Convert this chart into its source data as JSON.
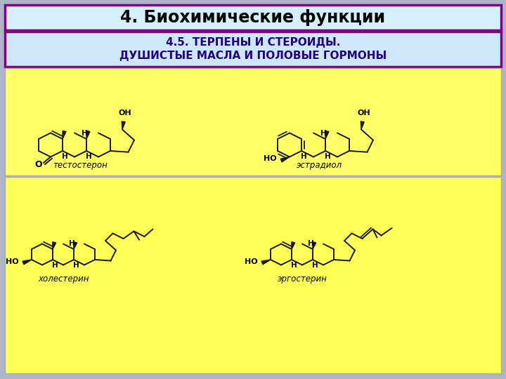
{
  "title": "4. Биохимические функции",
  "subtitle_line1": "4.5. ТЕРПЕНЫ И СТЕРОИДЫ.",
  "subtitle_line2": "ДУШИСТЫЕ МАСЛА И ПОЛОВЫЕ ГОРМОНЫ",
  "label_testosterone": "тестостерон",
  "label_estradiol": "эстрадиол",
  "label_cholesterol": "холестерин",
  "label_ergosterol": "эргостерин",
  "bg_color": "#adb5c8",
  "title_bg": "#d4f0fc",
  "title_border": "#800080",
  "subtitle_bg": "#cce8f8",
  "subtitle_border": "#800080",
  "panel_top_bg": "#ffff66",
  "panel_bot_bg": "#ffff55",
  "structure_color": "#1a1a00",
  "title_fontsize": 17,
  "subtitle_fontsize": 11,
  "label_fontsize": 8.5
}
